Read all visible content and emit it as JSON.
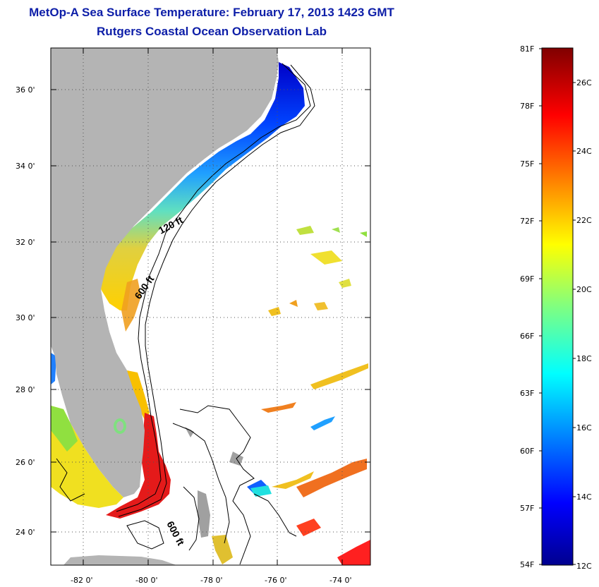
{
  "header": {
    "title": "MetOp-A Sea Surface Temperature:  February 17, 2013 1423 GMT",
    "subtitle": "Rutgers Coastal Ocean Observation Lab"
  },
  "map": {
    "lat_labels": [
      "36 0'",
      "34 0'",
      "32 0'",
      "30 0'",
      "28 0'",
      "26 0'",
      "24 0'"
    ],
    "lon_labels": [
      "-82 0'",
      "-80 0'",
      "-78 0'",
      "-76 0'",
      "-74 0'"
    ],
    "contour_labels": [
      "120 ft",
      "600 ft",
      "600 ft"
    ],
    "colors": {
      "land": "#b4b4b4",
      "background": "#ffffff",
      "grid": "#000000"
    }
  },
  "colorbar": {
    "f_labels": [
      "81F",
      "78F",
      "75F",
      "72F",
      "69F",
      "66F",
      "63F",
      "60F",
      "57F",
      "54F"
    ],
    "c_labels": [
      "26C",
      "24C",
      "22C",
      "20C",
      "18C",
      "16C",
      "14C",
      "12C"
    ],
    "colormap": "jet",
    "range_f": [
      54,
      81
    ],
    "range_c": [
      12,
      27.2
    ]
  }
}
